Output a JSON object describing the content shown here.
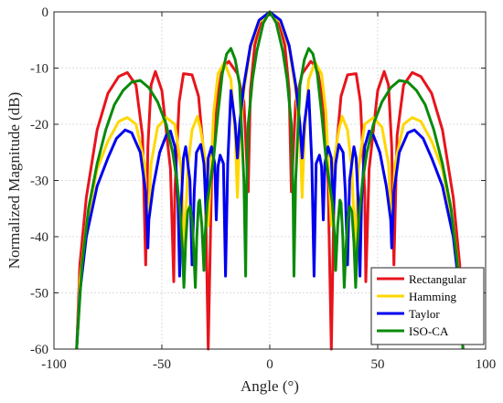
{
  "chart_data": {
    "type": "line",
    "title": "",
    "xlabel": "Angle (°)",
    "ylabel": "Normalized Magnitude (dB)",
    "xlim": [
      -100,
      100
    ],
    "ylim": [
      -60,
      0
    ],
    "xticks": [
      -100,
      -50,
      0,
      50,
      100
    ],
    "yticks": [
      0,
      -10,
      -20,
      -30,
      -40,
      -50,
      -60
    ],
    "xtick_labels": [
      "-100",
      "-50",
      "0",
      "50",
      "100"
    ],
    "ytick_labels": [
      "0",
      "-10",
      "-20",
      "-30",
      "-40",
      "-50",
      "-60"
    ],
    "grid": true,
    "legend_position": "bottom-right",
    "series": [
      {
        "name": "Rectangular",
        "color": "#e8141c",
        "points": [
          [
            0,
            0
          ],
          [
            4,
            -1.5
          ],
          [
            7,
            -6
          ],
          [
            9,
            -14
          ],
          [
            10,
            -32
          ],
          [
            12,
            -16
          ],
          [
            15,
            -11
          ],
          [
            19,
            -8.8
          ],
          [
            22,
            -10
          ],
          [
            25,
            -17
          ],
          [
            27,
            -30
          ],
          [
            28.5,
            -60
          ],
          [
            30,
            -28
          ],
          [
            33,
            -15
          ],
          [
            36,
            -11.2
          ],
          [
            40,
            -11
          ],
          [
            42,
            -16
          ],
          [
            44,
            -32
          ],
          [
            44.5,
            -48
          ],
          [
            46,
            -28
          ],
          [
            50,
            -14
          ],
          [
            53,
            -10.6
          ],
          [
            55,
            -13
          ],
          [
            56.5,
            -24
          ],
          [
            57.5,
            -45
          ],
          [
            59,
            -22
          ],
          [
            62,
            -13
          ],
          [
            66,
            -10.8
          ],
          [
            70,
            -11.5
          ],
          [
            75,
            -14.5
          ],
          [
            80,
            -21
          ],
          [
            85,
            -33
          ],
          [
            88,
            -45
          ],
          [
            89.5,
            -60
          ]
        ]
      },
      {
        "name": "Hamming",
        "color": "#ffd700",
        "points": [
          [
            0,
            0
          ],
          [
            5,
            -1.8
          ],
          [
            9,
            -6.5
          ],
          [
            12,
            -14
          ],
          [
            14,
            -22
          ],
          [
            15,
            -33
          ],
          [
            16,
            -22
          ],
          [
            18,
            -12
          ],
          [
            21,
            -9
          ],
          [
            24,
            -11
          ],
          [
            26,
            -18
          ],
          [
            27,
            -26
          ],
          [
            28.5,
            -38
          ],
          [
            30,
            -26
          ],
          [
            32,
            -21
          ],
          [
            33.5,
            -18.6
          ],
          [
            36,
            -21
          ],
          [
            38,
            -28
          ],
          [
            39.5,
            -42
          ],
          [
            41,
            -28
          ],
          [
            44,
            -20
          ],
          [
            48,
            -18.8
          ],
          [
            52,
            -20.5
          ],
          [
            55,
            -27
          ],
          [
            56.5,
            -40
          ],
          [
            58,
            -27
          ],
          [
            62,
            -20
          ],
          [
            66,
            -18.8
          ],
          [
            70,
            -19.5
          ],
          [
            75,
            -23
          ],
          [
            80,
            -28
          ],
          [
            85,
            -38
          ],
          [
            88,
            -48
          ],
          [
            89.5,
            -60
          ]
        ]
      },
      {
        "name": "Taylor",
        "color": "#0000ee",
        "points": [
          [
            0,
            0
          ],
          [
            5,
            -1.5
          ],
          [
            9,
            -6
          ],
          [
            12,
            -13
          ],
          [
            14,
            -20
          ],
          [
            15,
            -26
          ],
          [
            16,
            -20
          ],
          [
            18,
            -14
          ],
          [
            19.5,
            -27
          ],
          [
            20.5,
            -47
          ],
          [
            21.5,
            -27
          ],
          [
            23,
            -25.5
          ],
          [
            24,
            -27.5
          ],
          [
            24.8,
            -37
          ],
          [
            25.5,
            -27
          ],
          [
            27,
            -24
          ],
          [
            28.5,
            -26
          ],
          [
            29.5,
            -36
          ],
          [
            30.5,
            -27
          ],
          [
            32,
            -23.6
          ],
          [
            34,
            -25
          ],
          [
            35,
            -32
          ],
          [
            36,
            -45
          ],
          [
            37,
            -30
          ],
          [
            39,
            -24
          ],
          [
            40,
            -26
          ],
          [
            41,
            -34
          ],
          [
            41.8,
            -47
          ],
          [
            42.5,
            -34
          ],
          [
            44,
            -24
          ],
          [
            46,
            -21.2
          ],
          [
            48,
            -22
          ],
          [
            51,
            -25
          ],
          [
            54,
            -31
          ],
          [
            56,
            -37
          ],
          [
            56.5,
            -42
          ],
          [
            57.5,
            -32
          ],
          [
            60,
            -25
          ],
          [
            64,
            -21.5
          ],
          [
            67,
            -21
          ],
          [
            71,
            -22.5
          ],
          [
            75,
            -26
          ],
          [
            80,
            -31
          ],
          [
            85,
            -40
          ],
          [
            88,
            -50
          ],
          [
            89.5,
            -60
          ]
        ]
      },
      {
        "name": "ISO-CA",
        "color": "#0a8a0a",
        "points": [
          [
            0,
            0
          ],
          [
            3,
            -2
          ],
          [
            6,
            -7
          ],
          [
            8,
            -12
          ],
          [
            10,
            -20
          ],
          [
            10.8,
            -33
          ],
          [
            11.2,
            -47
          ],
          [
            12,
            -30
          ],
          [
            14,
            -13
          ],
          [
            16,
            -8.5
          ],
          [
            18,
            -6.5
          ],
          [
            20,
            -7.5
          ],
          [
            22,
            -11
          ],
          [
            24,
            -18
          ],
          [
            26,
            -26
          ],
          [
            27.5,
            -30
          ],
          [
            29,
            -34
          ],
          [
            30,
            -40
          ],
          [
            30.5,
            -46
          ],
          [
            31.5,
            -38
          ],
          [
            32.5,
            -33.5
          ],
          [
            33,
            -34
          ],
          [
            33.8,
            -40
          ],
          [
            34.5,
            -49
          ],
          [
            35.3,
            -42
          ],
          [
            36,
            -37
          ],
          [
            37,
            -34.6
          ],
          [
            38,
            -35.5
          ],
          [
            39,
            -41
          ],
          [
            39.8,
            -49
          ],
          [
            40.5,
            -42
          ],
          [
            41.5,
            -36
          ],
          [
            43,
            -30
          ],
          [
            45,
            -25
          ],
          [
            48,
            -20
          ],
          [
            52,
            -16
          ],
          [
            56,
            -13.5
          ],
          [
            60,
            -12.2
          ],
          [
            64,
            -12.5
          ],
          [
            68,
            -14
          ],
          [
            72,
            -16.5
          ],
          [
            76,
            -21
          ],
          [
            80,
            -27
          ],
          [
            84,
            -35
          ],
          [
            87,
            -45
          ],
          [
            89.5,
            -60
          ]
        ]
      }
    ]
  }
}
